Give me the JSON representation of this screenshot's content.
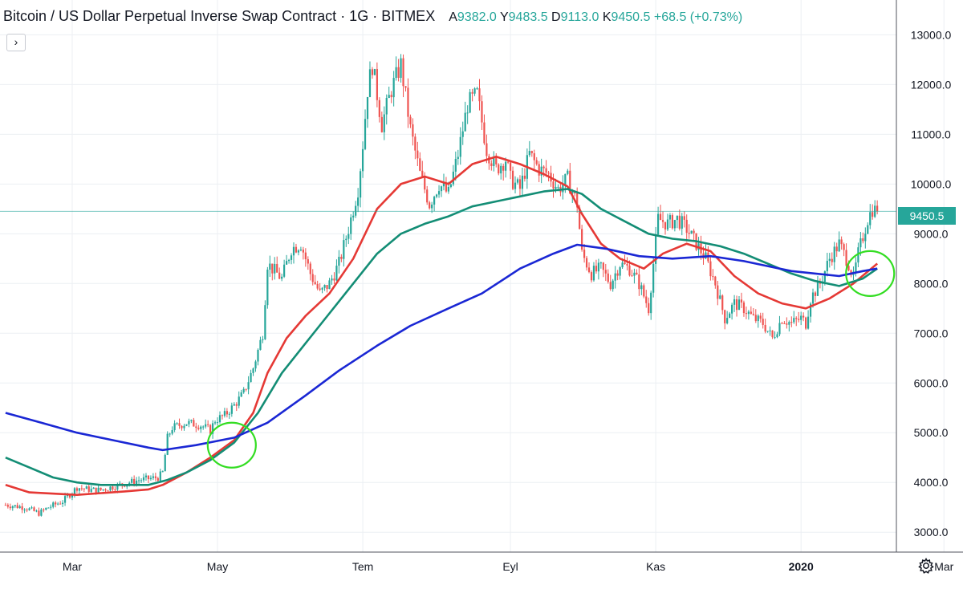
{
  "header": {
    "title": "Bitcoin / US Dollar Perpetual Inverse Swap Contract · 1G · BITMEX",
    "open_label": "A",
    "open": "9382.0",
    "high_label": "Y",
    "high": "9483.5",
    "low_label": "D",
    "low": "9113.0",
    "close_label": "K",
    "close": "9450.5",
    "change": "+68.5 (+0.73%)"
  },
  "collapse_label": "›",
  "last_price_label": "9450.5",
  "icons": {
    "collapse": "chevron-right-icon",
    "settings": "gear-icon"
  },
  "colors": {
    "up": "#26a69a",
    "down": "#ef5350",
    "ma_fast": "#e53935",
    "ma_mid": "#138d75",
    "ma_slow": "#1a27d4",
    "highlight_circle": "#33dd22",
    "grid": "#eceff3",
    "last_price_line": "#26a69a"
  },
  "chart_data": {
    "type": "candlestick",
    "y_axis": {
      "min": 2600,
      "max": 13700,
      "ticks": [
        3000,
        4000,
        5000,
        6000,
        7000,
        8000,
        9000,
        10000,
        11000,
        12000,
        13000
      ],
      "tick_labels": [
        "3000.0",
        "4000.0",
        "5000.0",
        "6000.0",
        "7000.0",
        "8000.0",
        "9000.0",
        "10000.0",
        "11000.0",
        "12000.0",
        "13000.0"
      ]
    },
    "x_axis": {
      "labels": [
        "Mar",
        "May",
        "Tem",
        "Eyl",
        "Kas",
        "2020",
        "Mar"
      ],
      "label_days": [
        28,
        89,
        150,
        212,
        273,
        334,
        394
      ],
      "bold_label": "2020"
    },
    "last_price": 9450.5,
    "close_path": [
      [
        0,
        3550
      ],
      [
        8,
        3500
      ],
      [
        14,
        3380
      ],
      [
        18,
        3500
      ],
      [
        24,
        3620
      ],
      [
        30,
        3900
      ],
      [
        36,
        3850
      ],
      [
        40,
        3850
      ],
      [
        48,
        3950
      ],
      [
        56,
        4050
      ],
      [
        64,
        4100
      ],
      [
        66,
        4200
      ],
      [
        68,
        4900
      ],
      [
        70,
        5100
      ],
      [
        76,
        5200
      ],
      [
        82,
        5150
      ],
      [
        86,
        5050
      ],
      [
        88,
        5250
      ],
      [
        92,
        5350
      ],
      [
        96,
        5550
      ],
      [
        100,
        5800
      ],
      [
        104,
        6300
      ],
      [
        108,
        7000
      ],
      [
        110,
        8400
      ],
      [
        116,
        8100
      ],
      [
        120,
        8700
      ],
      [
        124,
        8800
      ],
      [
        128,
        8200
      ],
      [
        132,
        7800
      ],
      [
        136,
        8000
      ],
      [
        140,
        8400
      ],
      [
        144,
        9100
      ],
      [
        148,
        9900
      ],
      [
        150,
        10800
      ],
      [
        152,
        11900
      ],
      [
        154,
        12400
      ],
      [
        158,
        11200
      ],
      [
        162,
        11900
      ],
      [
        166,
        12400
      ],
      [
        170,
        11100
      ],
      [
        174,
        10200
      ],
      [
        178,
        9600
      ],
      [
        182,
        10000
      ],
      [
        186,
        9800
      ],
      [
        190,
        10600
      ],
      [
        194,
        11600
      ],
      [
        198,
        11800
      ],
      [
        202,
        10700
      ],
      [
        206,
        10300
      ],
      [
        210,
        10500
      ],
      [
        212,
        10100
      ],
      [
        216,
        9900
      ],
      [
        220,
        10600
      ],
      [
        224,
        10300
      ],
      [
        228,
        10200
      ],
      [
        232,
        9900
      ],
      [
        236,
        10100
      ],
      [
        240,
        9600
      ],
      [
        242,
        8600
      ],
      [
        246,
        8200
      ],
      [
        250,
        8300
      ],
      [
        254,
        8000
      ],
      [
        258,
        8400
      ],
      [
        262,
        8300
      ],
      [
        266,
        8000
      ],
      [
        270,
        7500
      ],
      [
        272,
        8400
      ],
      [
        274,
        9300
      ],
      [
        278,
        9200
      ],
      [
        282,
        9300
      ],
      [
        286,
        9100
      ],
      [
        290,
        8800
      ],
      [
        294,
        8500
      ],
      [
        298,
        8000
      ],
      [
        302,
        7300
      ],
      [
        306,
        7600
      ],
      [
        310,
        7500
      ],
      [
        314,
        7300
      ],
      [
        318,
        7200
      ],
      [
        322,
        6900
      ],
      [
        326,
        7300
      ],
      [
        330,
        7200
      ],
      [
        334,
        7300
      ],
      [
        336,
        7200
      ],
      [
        338,
        7700
      ],
      [
        342,
        8000
      ],
      [
        346,
        8500
      ],
      [
        350,
        8800
      ],
      [
        354,
        8400
      ],
      [
        356,
        8100
      ],
      [
        358,
        8600
      ],
      [
        362,
        9300
      ],
      [
        364,
        9500
      ],
      [
        366,
        9450.5
      ]
    ],
    "series": [
      {
        "name": "",
        "color": "#e53935",
        "points": [
          [
            0,
            3950
          ],
          [
            10,
            3800
          ],
          [
            30,
            3750
          ],
          [
            50,
            3820
          ],
          [
            60,
            3860
          ],
          [
            66,
            3950
          ],
          [
            76,
            4200
          ],
          [
            86,
            4500
          ],
          [
            96,
            4850
          ],
          [
            104,
            5400
          ],
          [
            110,
            6200
          ],
          [
            118,
            6900
          ],
          [
            126,
            7350
          ],
          [
            136,
            7800
          ],
          [
            146,
            8500
          ],
          [
            156,
            9500
          ],
          [
            166,
            10000
          ],
          [
            176,
            10150
          ],
          [
            186,
            10000
          ],
          [
            196,
            10400
          ],
          [
            206,
            10550
          ],
          [
            216,
            10400
          ],
          [
            226,
            10200
          ],
          [
            236,
            9950
          ],
          [
            242,
            9400
          ],
          [
            250,
            8800
          ],
          [
            258,
            8500
          ],
          [
            268,
            8300
          ],
          [
            276,
            8600
          ],
          [
            286,
            8800
          ],
          [
            296,
            8650
          ],
          [
            306,
            8150
          ],
          [
            316,
            7800
          ],
          [
            326,
            7600
          ],
          [
            336,
            7500
          ],
          [
            346,
            7700
          ],
          [
            356,
            8000
          ],
          [
            366,
            8400
          ]
        ]
      },
      {
        "name": "",
        "color": "#138d75",
        "points": [
          [
            0,
            4500
          ],
          [
            10,
            4300
          ],
          [
            20,
            4100
          ],
          [
            30,
            4000
          ],
          [
            40,
            3950
          ],
          [
            50,
            3950
          ],
          [
            60,
            3950
          ],
          [
            68,
            4050
          ],
          [
            76,
            4200
          ],
          [
            86,
            4450
          ],
          [
            96,
            4800
          ],
          [
            106,
            5400
          ],
          [
            116,
            6200
          ],
          [
            126,
            6800
          ],
          [
            136,
            7400
          ],
          [
            146,
            8000
          ],
          [
            156,
            8600
          ],
          [
            166,
            9000
          ],
          [
            176,
            9200
          ],
          [
            186,
            9350
          ],
          [
            196,
            9550
          ],
          [
            206,
            9650
          ],
          [
            216,
            9750
          ],
          [
            226,
            9850
          ],
          [
            236,
            9900
          ],
          [
            242,
            9800
          ],
          [
            250,
            9500
          ],
          [
            260,
            9250
          ],
          [
            270,
            9000
          ],
          [
            280,
            8900
          ],
          [
            290,
            8850
          ],
          [
            300,
            8750
          ],
          [
            310,
            8600
          ],
          [
            320,
            8400
          ],
          [
            330,
            8200
          ],
          [
            340,
            8050
          ],
          [
            350,
            7950
          ],
          [
            360,
            8100
          ],
          [
            366,
            8300
          ]
        ]
      },
      {
        "name": "",
        "color": "#1a27d4",
        "points": [
          [
            0,
            5400
          ],
          [
            15,
            5200
          ],
          [
            30,
            5000
          ],
          [
            45,
            4850
          ],
          [
            60,
            4700
          ],
          [
            66,
            4650
          ],
          [
            80,
            4750
          ],
          [
            96,
            4900
          ],
          [
            110,
            5200
          ],
          [
            126,
            5750
          ],
          [
            140,
            6250
          ],
          [
            156,
            6750
          ],
          [
            170,
            7150
          ],
          [
            186,
            7500
          ],
          [
            200,
            7800
          ],
          [
            216,
            8300
          ],
          [
            230,
            8600
          ],
          [
            240,
            8780
          ],
          [
            252,
            8700
          ],
          [
            266,
            8550
          ],
          [
            280,
            8500
          ],
          [
            296,
            8550
          ],
          [
            310,
            8450
          ],
          [
            320,
            8350
          ],
          [
            330,
            8250
          ],
          [
            340,
            8200
          ],
          [
            350,
            8150
          ],
          [
            360,
            8250
          ],
          [
            366,
            8300
          ]
        ]
      }
    ],
    "highlight_circles": [
      {
        "x": 95,
        "y": 4750
      },
      {
        "x": 363,
        "y": 8200
      }
    ]
  }
}
